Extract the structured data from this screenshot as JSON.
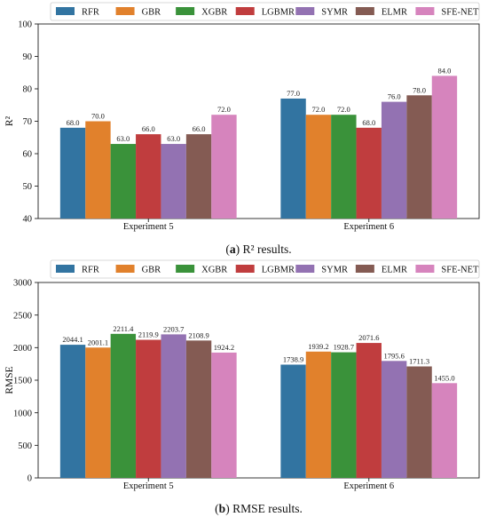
{
  "colors": {
    "RFR": "#3274a1",
    "GBR": "#e1812c",
    "XGBR": "#3a923a",
    "LGBMR": "#c03d3e",
    "SYMR": "#9372b2",
    "ELMR": "#845b53",
    "SFE-NET": "#d684bd"
  },
  "chart_data": [
    {
      "type": "bar",
      "caption_letter": "a",
      "caption_text": " R² results.",
      "ylabel": "R²",
      "ylim": [
        40,
        100
      ],
      "yticks": [
        40,
        50,
        60,
        70,
        80,
        90,
        100
      ],
      "ytick_labels": [
        "40",
        "50",
        "60",
        "70",
        "80",
        "90",
        "100"
      ],
      "categories": [
        "Experiment 5",
        "Experiment 6"
      ],
      "legend_position": "top",
      "series": [
        {
          "name": "RFR",
          "values": [
            68.0,
            77.0
          ],
          "labels": [
            "68.0",
            "77.0"
          ]
        },
        {
          "name": "GBR",
          "values": [
            70.0,
            72.0
          ],
          "labels": [
            "70.0",
            "72.0"
          ]
        },
        {
          "name": "XGBR",
          "values": [
            63.0,
            72.0
          ],
          "labels": [
            "63.0",
            "72.0"
          ]
        },
        {
          "name": "LGBMR",
          "values": [
            66.0,
            68.0
          ],
          "labels": [
            "66.0",
            "68.0"
          ]
        },
        {
          "name": "SYMR",
          "values": [
            63.0,
            76.0
          ],
          "labels": [
            "63.0",
            "76.0"
          ]
        },
        {
          "name": "ELMR",
          "values": [
            66.0,
            78.0
          ],
          "labels": [
            "66.0",
            "78.0"
          ]
        },
        {
          "name": "SFE-NET",
          "values": [
            72.0,
            84.0
          ],
          "labels": [
            "72.0",
            "84.0"
          ]
        }
      ]
    },
    {
      "type": "bar",
      "caption_letter": "b",
      "caption_text": " RMSE results.",
      "ylabel": "RMSE",
      "ylim": [
        0,
        3000
      ],
      "yticks": [
        0,
        500,
        1000,
        1500,
        2000,
        2500,
        3000
      ],
      "ytick_labels": [
        "0",
        "500",
        "1000",
        "1500",
        "2000",
        "2500",
        "3000"
      ],
      "categories": [
        "Experiment 5",
        "Experiment 6"
      ],
      "legend_position": "top",
      "series": [
        {
          "name": "RFR",
          "values": [
            2044.1,
            1738.9
          ],
          "labels": [
            "2044.1",
            "1738.9"
          ]
        },
        {
          "name": "GBR",
          "values": [
            2001.1,
            1939.2
          ],
          "labels": [
            "2001.1",
            "1939.2"
          ]
        },
        {
          "name": "XGBR",
          "values": [
            2211.4,
            1928.7
          ],
          "labels": [
            "2211.4",
            "1928.7"
          ]
        },
        {
          "name": "LGBMR",
          "values": [
            2119.9,
            2071.6
          ],
          "labels": [
            "2119.9",
            "2071.6"
          ]
        },
        {
          "name": "SYMR",
          "values": [
            2203.7,
            1795.6
          ],
          "labels": [
            "2203.7",
            "1795.6"
          ]
        },
        {
          "name": "ELMR",
          "values": [
            2108.9,
            1711.3
          ],
          "labels": [
            "2108.9",
            "1711.3"
          ]
        },
        {
          "name": "SFE-NET",
          "values": [
            1924.2,
            1455.0
          ],
          "labels": [
            "1924.2",
            "1455.0"
          ]
        }
      ]
    }
  ]
}
